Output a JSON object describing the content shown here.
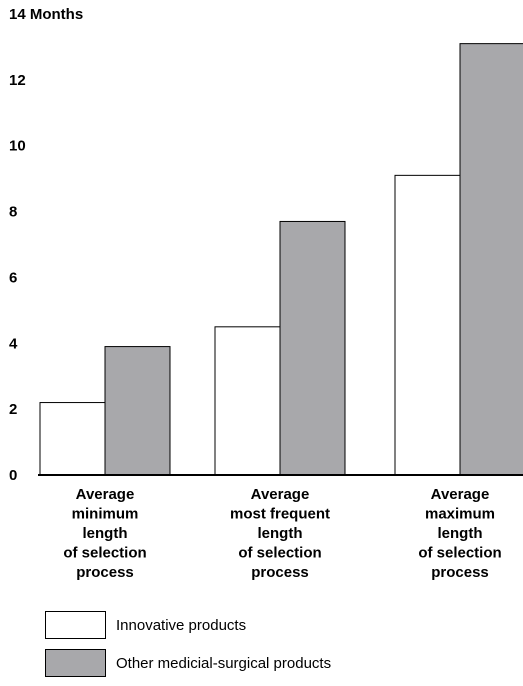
{
  "chart_data": {
    "type": "bar",
    "unit_label": "Months",
    "categories": [
      [
        "Average",
        "minimum",
        "length",
        "of selection",
        "process"
      ],
      [
        "Average",
        "most frequent",
        "length",
        "of selection",
        "process"
      ],
      [
        "Average",
        "maximum",
        "length",
        "of selection",
        "process"
      ]
    ],
    "series": [
      {
        "name": "Innovative products",
        "color": "#ffffff",
        "values": [
          2.2,
          4.5,
          9.1
        ]
      },
      {
        "name": "Other medicial-surgical products",
        "color": "#a8a8ab",
        "values": [
          3.9,
          7.7,
          13.1
        ]
      }
    ],
    "yticks": [
      0,
      2,
      4,
      6,
      8,
      10,
      12,
      14
    ],
    "ylim": [
      0,
      14
    ],
    "grid": false,
    "legend_position": "bottom-left"
  }
}
